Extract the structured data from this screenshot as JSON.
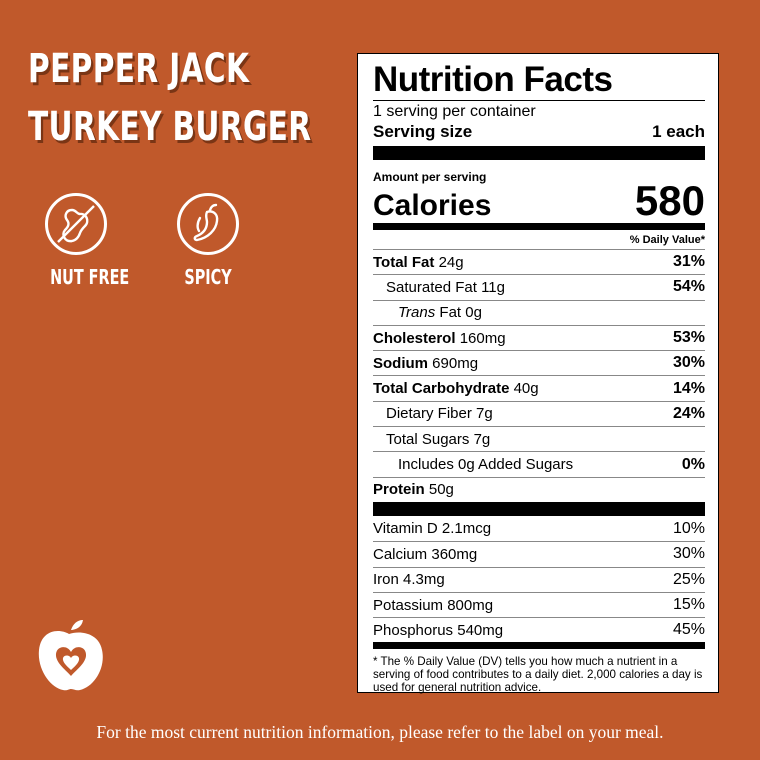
{
  "product": {
    "title_line1": "PEPPER JACK",
    "title_line2": "TURKEY BURGER"
  },
  "badges": [
    {
      "label": "NUT FREE",
      "icon": "no-peanut-icon"
    },
    {
      "label": "SPICY",
      "icon": "chili-pepper-icon"
    }
  ],
  "nutrition": {
    "title": "Nutrition Facts",
    "servings": "1 serving per container",
    "serving_size_label": "Serving size",
    "serving_size_value": "1 each",
    "amount_per_serving": "Amount per serving",
    "calories_label": "Calories",
    "calories_value": "580",
    "dv_header": "% Daily Value*",
    "rows": [
      {
        "bold": "Total Fat",
        "name": "",
        "amount": "24g",
        "pct": "31%"
      },
      {
        "bold": "",
        "name": "Saturated Fat",
        "amount": "11g",
        "pct": "54%"
      },
      {
        "bold": "",
        "italic": "Trans",
        "name": "Fat",
        "amount": "0g",
        "pct": ""
      },
      {
        "bold": "Cholesterol",
        "name": "",
        "amount": "160mg",
        "pct": "53%"
      },
      {
        "bold": "Sodium",
        "name": "",
        "amount": "690mg",
        "pct": "30%"
      },
      {
        "bold": "Total Carbohydrate",
        "name": "",
        "amount": "40g",
        "pct": "14%"
      },
      {
        "bold": "",
        "name": "Dietary Fiber",
        "amount": "7g",
        "pct": "24%"
      },
      {
        "bold": "",
        "name": "Total Sugars",
        "amount": "7g",
        "pct": ""
      },
      {
        "bold": "",
        "name": "Includes 0g Added Sugars",
        "amount": "",
        "pct": "0%"
      },
      {
        "bold": "Protein",
        "name": "",
        "amount": "50g",
        "pct": ""
      }
    ],
    "vitamins": [
      {
        "name": "Vitamin D",
        "amount": "2.1mcg",
        "pct": "10%"
      },
      {
        "name": "Calcium",
        "amount": "360mg",
        "pct": "30%"
      },
      {
        "name": "Iron",
        "amount": "4.3mg",
        "pct": "25%"
      },
      {
        "name": "Potassium",
        "amount": "800mg",
        "pct": "15%"
      },
      {
        "name": "Phosphorus",
        "amount": "540mg",
        "pct": "45%"
      }
    ],
    "footnote": "* The % Daily Value (DV) tells you how much a nutrient in a serving of food contributes to a daily diet. 2,000 calories a day is used for general nutrition advice."
  },
  "footer": "For the most current nutrition information, please refer to the label on your meal.",
  "colors": {
    "background": "#C0592B",
    "panel": "#FFFFFF",
    "text": "#000000"
  },
  "logo_icon": "apple-heart-icon"
}
